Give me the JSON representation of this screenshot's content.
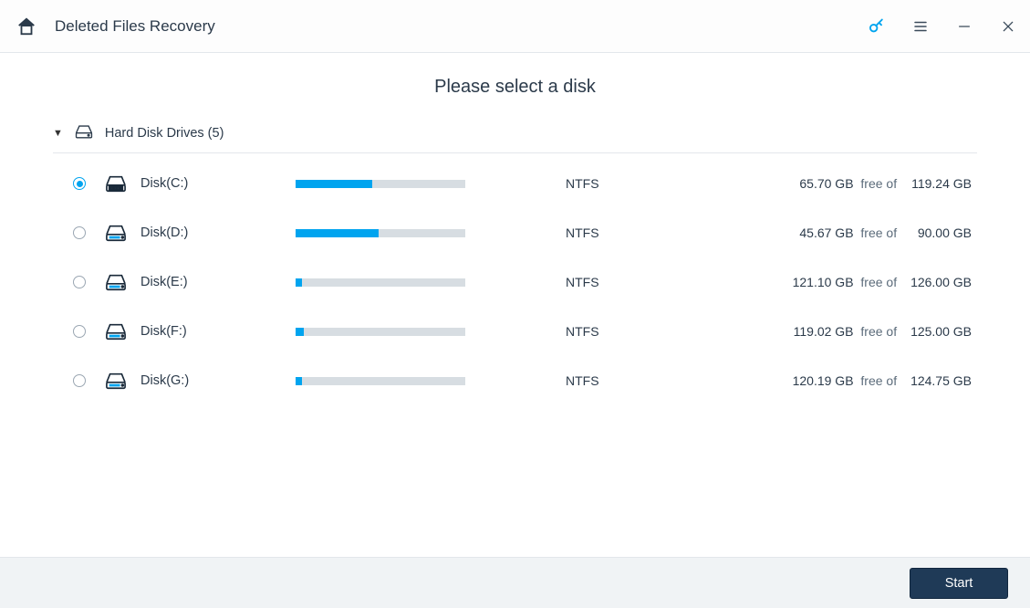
{
  "colors": {
    "accent": "#00a4ef",
    "bar_bg": "#d7dde2",
    "border": "#e3e7eb",
    "footer_bg": "#f0f3f5",
    "button_bg": "#1f3a57",
    "button_border": "#10263e",
    "text": "#2b3a4a"
  },
  "header": {
    "title": "Deleted Files Recovery"
  },
  "main": {
    "prompt": "Please select a disk",
    "category_label": "Hard Disk Drives (5)",
    "free_of_label": "  free of  ",
    "disks": [
      {
        "selected": true,
        "name": "Disk(C:)",
        "icon": "system",
        "used_pct": 45,
        "fs": "NTFS",
        "free": "65.70 GB",
        "total": "119.24 GB"
      },
      {
        "selected": false,
        "name": "Disk(D:)",
        "icon": "drive",
        "used_pct": 49,
        "fs": "NTFS",
        "free": "45.67 GB",
        "total": "90.00 GB"
      },
      {
        "selected": false,
        "name": "Disk(E:)",
        "icon": "drive",
        "used_pct": 4,
        "fs": "NTFS",
        "free": "121.10 GB",
        "total": "126.00 GB"
      },
      {
        "selected": false,
        "name": "Disk(F:)",
        "icon": "drive",
        "used_pct": 5,
        "fs": "NTFS",
        "free": "119.02 GB",
        "total": "125.00 GB"
      },
      {
        "selected": false,
        "name": "Disk(G:)",
        "icon": "drive",
        "used_pct": 4,
        "fs": "NTFS",
        "free": "120.19 GB",
        "total": "124.75 GB"
      }
    ]
  },
  "footer": {
    "start_label": "Start"
  }
}
